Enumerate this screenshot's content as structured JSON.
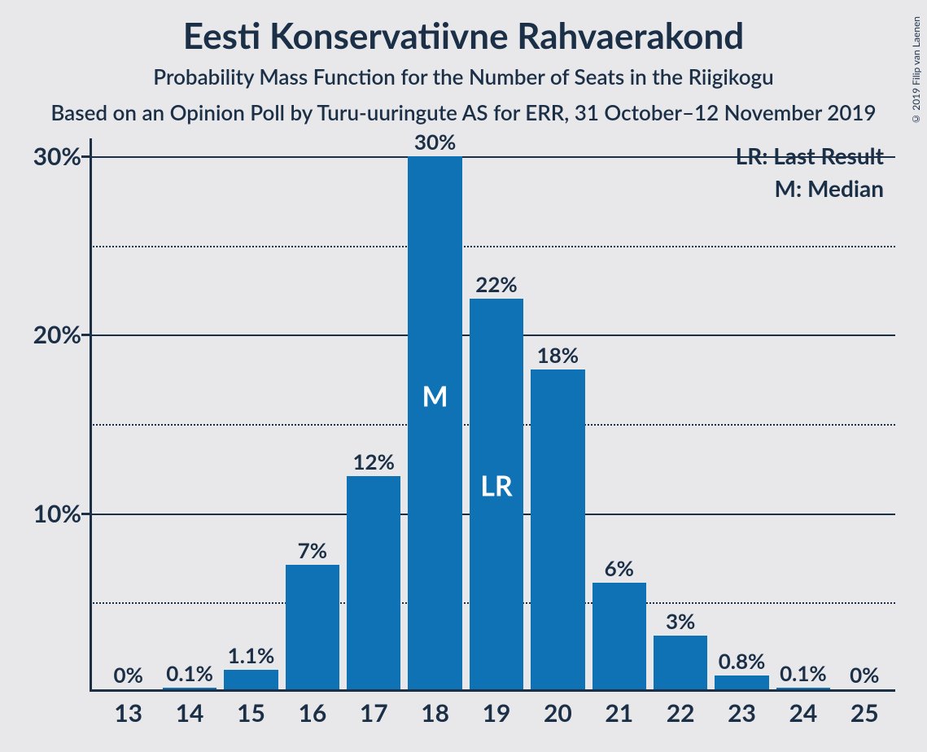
{
  "title": "Eesti Konservatiivne Rahvaerakond",
  "subtitle": "Probability Mass Function for the Number of Seats in the Riigikogu",
  "source": "Based on an Opinion Poll by Turu-uuringute AS for ERR, 31 October–12 November 2019",
  "copyright": "© 2019 Filip van Laenen",
  "legend": {
    "lr": "LR: Last Result",
    "m": "M: Median"
  },
  "chart": {
    "type": "bar",
    "bar_color": "#0f72b5",
    "background_color": "#e8e8ea",
    "text_color": "#1b2f47",
    "grid_major_color": "#1b2f47",
    "grid_minor_color": "#1b2f47",
    "y_axis": {
      "min": 0,
      "max": 31,
      "major_ticks": [
        10,
        20,
        30
      ],
      "minor_ticks": [
        5,
        15,
        25
      ],
      "tick_labels": [
        "10%",
        "20%",
        "30%"
      ]
    },
    "x_axis": {
      "categories": [
        "13",
        "14",
        "15",
        "16",
        "17",
        "18",
        "19",
        "20",
        "21",
        "22",
        "23",
        "24",
        "25"
      ]
    },
    "bars": [
      {
        "x": "13",
        "value": 0,
        "label": "0%"
      },
      {
        "x": "14",
        "value": 0.1,
        "label": "0.1%"
      },
      {
        "x": "15",
        "value": 1.1,
        "label": "1.1%"
      },
      {
        "x": "16",
        "value": 7,
        "label": "7%"
      },
      {
        "x": "17",
        "value": 12,
        "label": "12%"
      },
      {
        "x": "18",
        "value": 30,
        "label": "30%",
        "annotation": "M"
      },
      {
        "x": "19",
        "value": 22,
        "label": "22%",
        "annotation": "LR"
      },
      {
        "x": "20",
        "value": 18,
        "label": "18%"
      },
      {
        "x": "21",
        "value": 6,
        "label": "6%"
      },
      {
        "x": "22",
        "value": 3,
        "label": "3%"
      },
      {
        "x": "23",
        "value": 0.8,
        "label": "0.8%"
      },
      {
        "x": "24",
        "value": 0.1,
        "label": "0.1%"
      },
      {
        "x": "25",
        "value": 0,
        "label": "0%"
      }
    ],
    "bar_width_ratio": 0.88,
    "title_fontsize": 44,
    "subtitle_fontsize": 26,
    "axis_label_fontsize": 30,
    "bar_label_fontsize": 26
  }
}
